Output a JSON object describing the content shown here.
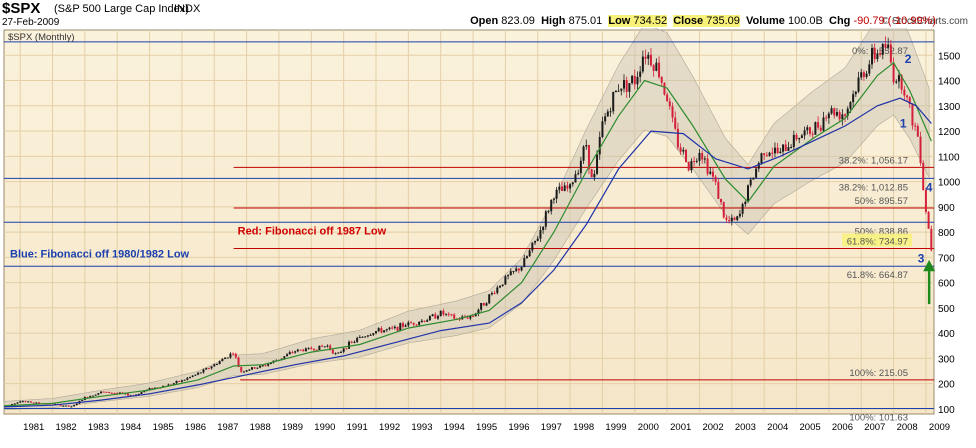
{
  "header": {
    "symbol": "$SPX",
    "name": "(S&P 500 Large Cap Index)",
    "exchange": "INDX",
    "date": "27-Feb-2009",
    "brand": "© StockCharts.com",
    "open_label": "Open",
    "open": "823.09",
    "high_label": "High",
    "high": "875.01",
    "low_label": "Low",
    "low": "734.52",
    "close_label": "Close",
    "close": "735.09",
    "volume_label": "Volume",
    "volume": "100.0B",
    "chg_label": "Chg",
    "chg": "-90.79 (-10.99%)"
  },
  "chart_data": {
    "type": "line",
    "subtype": "candlestick-with-moving-averages",
    "symbol_label": "$SPX (Monthly)",
    "x_ticks": [
      "1981",
      "1982",
      "1983",
      "1984",
      "1985",
      "1986",
      "1987",
      "1988",
      "1989",
      "1990",
      "1991",
      "1992",
      "1993",
      "1994",
      "1995",
      "1996",
      "1997",
      "1998",
      "1999",
      "2000",
      "2001",
      "2002",
      "2003",
      "2004",
      "2005",
      "2006",
      "2007",
      "2008",
      "2009"
    ],
    "y_ticks": [
      100,
      200,
      300,
      400,
      500,
      600,
      700,
      800,
      900,
      1000,
      1100,
      1200,
      1300,
      1400,
      1500
    ],
    "ylim": [
      80,
      1600
    ],
    "xlim": [
      1980.5,
      2009.25
    ],
    "price_series": {
      "name": "$SPX monthly close (approx.)",
      "x": [
        1980.5,
        1981,
        1981.5,
        1982,
        1982.6,
        1983,
        1983.5,
        1984,
        1984.5,
        1985,
        1985.5,
        1986,
        1986.5,
        1987,
        1987.6,
        1987.8,
        1988,
        1988.5,
        1989,
        1989.5,
        1990,
        1990.5,
        1990.8,
        1991,
        1991.5,
        1992,
        1992.5,
        1993,
        1993.5,
        1994,
        1994.5,
        1995,
        1995.5,
        1996,
        1996.5,
        1997,
        1997.5,
        1998,
        1998.5,
        1998.7,
        1999,
        1999.5,
        2000,
        2000.3,
        2000.7,
        2001,
        2001.3,
        2001.7,
        2002,
        2002.5,
        2002.8,
        2003,
        2003.2,
        2003.5,
        2004,
        2004.5,
        2005,
        2005.5,
        2006,
        2006.5,
        2007,
        2007.4,
        2007.8,
        2008,
        2008.3,
        2008.5,
        2008.8,
        2008.92,
        2009,
        2009.17
      ],
      "y": [
        108,
        132,
        124,
        120,
        108,
        145,
        167,
        163,
        153,
        180,
        192,
        212,
        240,
        275,
        325,
        248,
        255,
        270,
        297,
        330,
        338,
        350,
        310,
        343,
        382,
        408,
        415,
        438,
        451,
        480,
        455,
        470,
        545,
        615,
        665,
        780,
        950,
        975,
        1150,
        980,
        1230,
        1380,
        1400,
        1520,
        1450,
        1330,
        1160,
        1060,
        1130,
        990,
        840,
        840,
        850,
        970,
        1130,
        1110,
        1180,
        1200,
        1280,
        1270,
        1420,
        1500,
        1540,
        1420,
        1390,
        1280,
        1160,
        970,
        890,
        735
      ]
    },
    "ma_series": [
      {
        "name": "Short moving average",
        "x": [
          1980.5,
          1982,
          1983.5,
          1985,
          1986.5,
          1987.6,
          1988.5,
          1990,
          1991.5,
          1993,
          1994.5,
          1995.5,
          1996.5,
          1997.5,
          1998.5,
          1999.5,
          2000.3,
          2001,
          2001.8,
          2002.8,
          2003.5,
          2004.3,
          2005.5,
          2006.5,
          2007.5,
          2008,
          2008.5,
          2009.17
        ],
        "y": [
          112,
          122,
          150,
          175,
          215,
          270,
          275,
          325,
          355,
          420,
          455,
          490,
          600,
          800,
          1040,
          1260,
          1400,
          1370,
          1220,
          1010,
          920,
          1060,
          1170,
          1250,
          1420,
          1470,
          1360,
          1160
        ]
      },
      {
        "name": "Long moving average",
        "x": [
          1980.5,
          1982,
          1983.5,
          1985,
          1986.5,
          1988,
          1989.5,
          1991,
          1992.5,
          1994,
          1995.5,
          1996.5,
          1997.5,
          1998.5,
          1999.5,
          2000.5,
          2001.5,
          2002.5,
          2003.5,
          2004.5,
          2005.5,
          2006.5,
          2007.5,
          2008.2,
          2008.7,
          2009.17
        ],
        "y": [
          108,
          115,
          135,
          160,
          195,
          235,
          275,
          310,
          360,
          410,
          440,
          520,
          650,
          830,
          1050,
          1200,
          1190,
          1090,
          1050,
          1100,
          1160,
          1220,
          1300,
          1330,
          1300,
          1230
        ]
      }
    ],
    "fib_red": [
      {
        "label": "38.2%: 1,056.17",
        "value": 1056.17
      },
      {
        "label": "50%: 895.57",
        "value": 895.57
      },
      {
        "label": "61.8%: 734.97",
        "value": 734.97
      },
      {
        "label": "100%: 215.05",
        "value": 215.05
      }
    ],
    "fib_blue": [
      {
        "label": "38.2%: 1,012.85",
        "value": 1012.85
      },
      {
        "label": "50%: 838.86",
        "value": 838.86
      },
      {
        "label": "61.8%: 664.87",
        "value": 664.87
      },
      {
        "label": "100%: 101.63",
        "value": 101.63
      },
      {
        "label": "0%: 1,552.87",
        "value": 1552.87
      }
    ],
    "annotations": [
      {
        "text": "Red:  Fibonacci off 1987 Low",
        "color": "#d00000"
      },
      {
        "text": "Blue:  Fibonacci off 1980/1982 Low",
        "color": "#1a3fae"
      }
    ],
    "wave_labels": [
      {
        "text": "1",
        "x": 2008.3,
        "y": 1215
      },
      {
        "text": "2",
        "x": 2008.45,
        "y": 1470
      },
      {
        "text": "3",
        "x": 2008.85,
        "y": 680
      },
      {
        "text": "4",
        "x": 2009.1,
        "y": 960
      }
    ],
    "colors": {
      "background": "#f5e6c8",
      "grid": "#e4cfa6",
      "candle_up": "#1a1a1a",
      "candle_down": "#d41f3a",
      "ma_short": "#2e8b2e",
      "ma_long": "#2133a8",
      "fib_red": "#c00000",
      "fib_blue": "#1a3fae",
      "envelope": "#c7c0b2",
      "arrow": "#1e8a1e",
      "wave_label": "#1a3fae"
    }
  }
}
